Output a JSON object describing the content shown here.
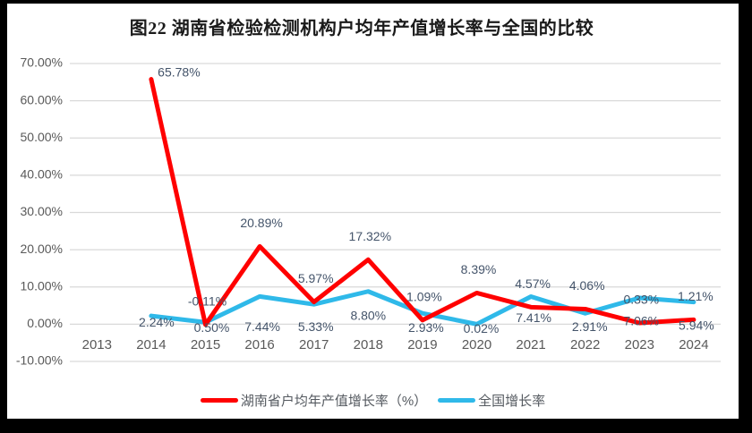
{
  "title": "图22 湖南省检验检测机构户均年产值增长率与全国的比较",
  "chart_data": {
    "type": "line",
    "categories": [
      "2013",
      "2014",
      "2015",
      "2016",
      "2017",
      "2018",
      "2019",
      "2020",
      "2021",
      "2022",
      "2023",
      "2024"
    ],
    "series": [
      {
        "name": "湖南省户均年产值增长率（%）",
        "color": "#ff0000",
        "values": [
          null,
          65.78,
          -0.11,
          20.89,
          5.97,
          17.32,
          1.09,
          8.39,
          4.57,
          4.06,
          0.33,
          1.21
        ],
        "labels": [
          null,
          "65.78%",
          "-0.11%",
          "20.89%",
          "5.97%",
          "17.32%",
          "1.09%",
          "8.39%",
          "4.57%",
          "4.06%",
          "0.33%",
          "1.21%"
        ]
      },
      {
        "name": "全国增长率",
        "color": "#2fb9e9",
        "values": [
          null,
          2.24,
          0.5,
          7.44,
          5.33,
          8.8,
          2.93,
          0.02,
          7.41,
          2.91,
          7.06,
          5.94
        ],
        "labels": [
          null,
          "2.24%",
          "0.50%",
          "7.44%",
          "5.33%",
          "8.80%",
          "2.93%",
          "0.02%",
          "7.41%",
          "2.91%",
          "7.06%",
          "5.94%"
        ]
      }
    ],
    "ylim": [
      -10,
      70
    ],
    "ytick_step": 10,
    "ytick_labels": [
      "70.00%",
      "60.00%",
      "50.00%",
      "40.00%",
      "30.00%",
      "20.00%",
      "10.00%",
      "0.00%",
      "-10.00%"
    ],
    "grid": true,
    "legend_position": "bottom",
    "xlabel": "",
    "ylabel": ""
  },
  "colors": {
    "frame": "#000000",
    "background": "#ffffff",
    "gridline": "#d9d9d9",
    "axis_text": "#595959",
    "data_label_text": "#44546a",
    "title_text": "#1a1a1a"
  }
}
